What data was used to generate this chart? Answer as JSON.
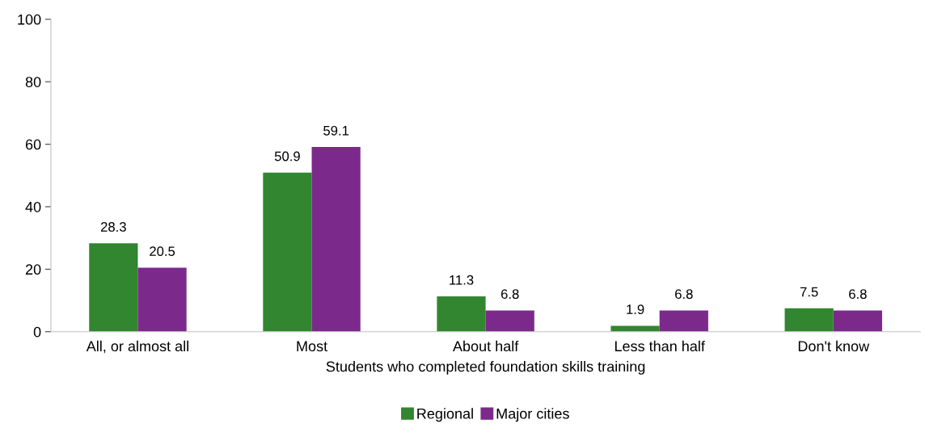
{
  "chart_data": {
    "type": "bar",
    "xlabel": "Students who completed foundation skills training",
    "categories": [
      "All, or almost all",
      "Most",
      "About half",
      "Less than half",
      "Don't know"
    ],
    "series": [
      {
        "name": "Regional",
        "color": "#31862f",
        "values": [
          28.3,
          50.9,
          11.3,
          1.9,
          7.5
        ]
      },
      {
        "name": "Major cities",
        "color": "#7b2a8b",
        "values": [
          20.5,
          59.1,
          6.8,
          6.8,
          6.8
        ]
      }
    ],
    "ylim": [
      0,
      100
    ],
    "yticks": [
      0,
      20,
      40,
      60,
      80,
      100
    ],
    "grid": false,
    "legend": "bottom",
    "data_labels": true
  }
}
